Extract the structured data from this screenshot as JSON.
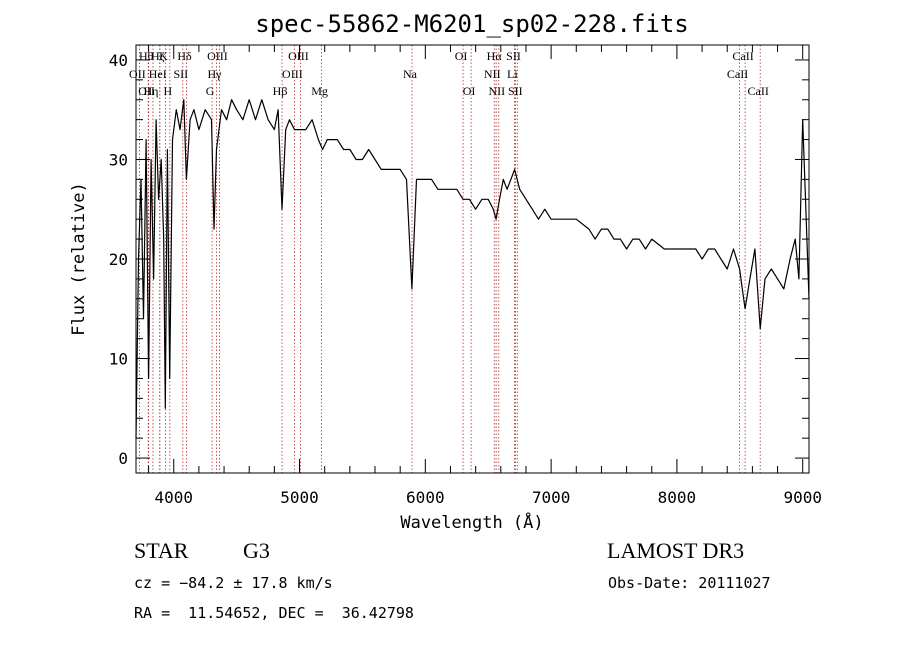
{
  "chart_data": {
    "type": "line",
    "title": "spec-55862-M6201_sp02-228.fits",
    "xlabel": "Wavelength (Å)",
    "ylabel": "Flux (relative)",
    "xlim": [
      3700,
      9050
    ],
    "ylim": [
      -1.5,
      41.5
    ],
    "xticks": [
      4000,
      5000,
      6000,
      7000,
      8000,
      9000
    ],
    "yticks": [
      0,
      10,
      20,
      30,
      40
    ],
    "line_color": "#000000",
    "marker_color": "#b03030",
    "grid": false,
    "series": [
      {
        "name": "flux",
        "x": [
          3700,
          3720,
          3740,
          3760,
          3780,
          3800,
          3820,
          3840,
          3860,
          3880,
          3900,
          3920,
          3933,
          3950,
          3968,
          3990,
          4020,
          4050,
          4080,
          4101,
          4130,
          4160,
          4200,
          4250,
          4300,
          4320,
          4340,
          4380,
          4420,
          4460,
          4500,
          4550,
          4600,
          4650,
          4700,
          4750,
          4800,
          4830,
          4861,
          4890,
          4920,
          4960,
          5000,
          5050,
          5100,
          5150,
          5183,
          5220,
          5270,
          5300,
          5350,
          5400,
          5450,
          5500,
          5550,
          5600,
          5650,
          5700,
          5750,
          5800,
          5850,
          5893,
          5930,
          5980,
          6050,
          6100,
          6150,
          6200,
          6250,
          6300,
          6350,
          6400,
          6450,
          6500,
          6540,
          6563,
          6590,
          6620,
          6650,
          6680,
          6710,
          6750,
          6800,
          6850,
          6900,
          6950,
          7000,
          7100,
          7200,
          7300,
          7350,
          7400,
          7450,
          7500,
          7550,
          7600,
          7650,
          7700,
          7750,
          7800,
          7900,
          8000,
          8050,
          8100,
          8150,
          8200,
          8250,
          8300,
          8350,
          8400,
          8450,
          8498,
          8520,
          8542,
          8580,
          8620,
          8662,
          8700,
          8750,
          8800,
          8850,
          8900,
          8940,
          8970,
          9000,
          9050
        ],
        "y": [
          2,
          20,
          28,
          14,
          32,
          8,
          30,
          18,
          34,
          26,
          30,
          22,
          5,
          31,
          8,
          32,
          35,
          33,
          36,
          28,
          34,
          35,
          33,
          35,
          34,
          23,
          31,
          35,
          34,
          36,
          35,
          34,
          36,
          34,
          36,
          34,
          33,
          35,
          25,
          33,
          34,
          33,
          33,
          33,
          34,
          32,
          31,
          32,
          32,
          32,
          31,
          31,
          30,
          30,
          31,
          30,
          29,
          29,
          29,
          29,
          28,
          17,
          28,
          28,
          28,
          27,
          27,
          27,
          27,
          26,
          26,
          25,
          26,
          26,
          25,
          24,
          26,
          28,
          27,
          28,
          29,
          27,
          26,
          25,
          24,
          25,
          24,
          24,
          24,
          23,
          22,
          23,
          23,
          22,
          22,
          21,
          22,
          22,
          21,
          22,
          21,
          21,
          21,
          21,
          21,
          20,
          21,
          21,
          20,
          19,
          21,
          19,
          17,
          15,
          18,
          21,
          13,
          18,
          19,
          18,
          17,
          20,
          22,
          18,
          34,
          16
        ]
      }
    ],
    "lines": [
      {
        "label": "OII",
        "wavelength": 3727,
        "row": 1
      },
      {
        "label": "Hθ",
        "wavelength": 3797,
        "row": 0
      },
      {
        "label": "OII",
        "wavelength": 3800,
        "row": 2
      },
      {
        "label": "Hη",
        "wavelength": 3835,
        "row": 2
      },
      {
        "label": "Hζ",
        "wavelength": 3889,
        "row": 0
      },
      {
        "label": "HeI",
        "wavelength": 3889,
        "row": 1
      },
      {
        "label": "K",
        "wavelength": 3934,
        "row": 0
      },
      {
        "label": "H",
        "wavelength": 3969,
        "row": 2
      },
      {
        "label": "SII",
        "wavelength": 4072,
        "row": 1
      },
      {
        "label": "Hδ",
        "wavelength": 4102,
        "row": 0
      },
      {
        "label": "OIII",
        "wavelength": 4363,
        "row": 0
      },
      {
        "label": "Hγ",
        "wavelength": 4340,
        "row": 1
      },
      {
        "label": "G",
        "wavelength": 4305,
        "row": 2
      },
      {
        "label": "Hβ",
        "wavelength": 4861,
        "row": 2
      },
      {
        "label": "OIII",
        "wavelength": 4959,
        "row": 1
      },
      {
        "label": "OIII",
        "wavelength": 5007,
        "row": 0
      },
      {
        "label": "Mg",
        "wavelength": 5175,
        "row": 2
      },
      {
        "label": "Na",
        "wavelength": 5894,
        "row": 1
      },
      {
        "label": "OI",
        "wavelength": 6300,
        "row": 0
      },
      {
        "label": "OI",
        "wavelength": 6364,
        "row": 2
      },
      {
        "label": "Hα",
        "wavelength": 6563,
        "row": 0
      },
      {
        "label": "NII",
        "wavelength": 6548,
        "row": 1
      },
      {
        "label": "NII",
        "wavelength": 6584,
        "row": 2
      },
      {
        "label": "SII",
        "wavelength": 6717,
        "row": 0
      },
      {
        "label": "Li",
        "wavelength": 6708,
        "row": 1
      },
      {
        "label": "SII",
        "wavelength": 6731,
        "row": 2
      },
      {
        "label": "CaII",
        "wavelength": 8498,
        "row": 1
      },
      {
        "label": "CaII",
        "wavelength": 8542,
        "row": 0
      },
      {
        "label": "CaII",
        "wavelength": 8662,
        "row": 2
      }
    ]
  },
  "footer": {
    "object_type": "STAR",
    "subclass": "G3",
    "survey": "LAMOST DR3",
    "redshift": "cz = −84.2 ± 17.8 km/s",
    "obs_date": "Obs-Date: 20111027",
    "coords": "RA =  11.54652, DEC =  36.42798"
  }
}
